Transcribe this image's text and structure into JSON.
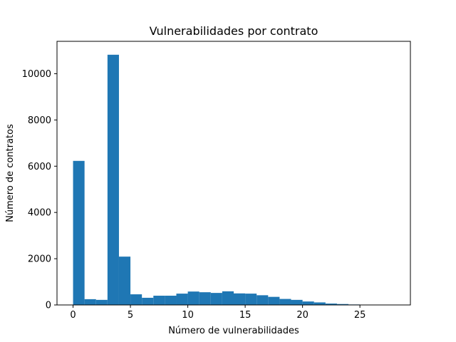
{
  "chart_data": {
    "type": "bar",
    "title": "Vulnerabilidades por contrato",
    "xlabel": "Número de vulnerabilidades",
    "ylabel": "Número de contratos",
    "xlim": [
      -1.4,
      29.4
    ],
    "ylim": [
      0,
      11400
    ],
    "xticks": [
      0,
      5,
      10,
      15,
      20,
      25
    ],
    "yticks": [
      0,
      2000,
      4000,
      6000,
      8000,
      10000
    ],
    "bin_edges": [
      0,
      1,
      2,
      3,
      4,
      5,
      6,
      7,
      8,
      9,
      10,
      11,
      12,
      13,
      14,
      15,
      16,
      17,
      18,
      19,
      20,
      21,
      22,
      23,
      24,
      25,
      26,
      27,
      28
    ],
    "values": [
      6230,
      250,
      220,
      10820,
      2090,
      460,
      310,
      400,
      400,
      490,
      580,
      550,
      520,
      590,
      500,
      490,
      420,
      350,
      260,
      220,
      150,
      110,
      60,
      40,
      20,
      10,
      5,
      5
    ],
    "bar_color": "#1f77b4",
    "grid": false,
    "legend": "none"
  }
}
